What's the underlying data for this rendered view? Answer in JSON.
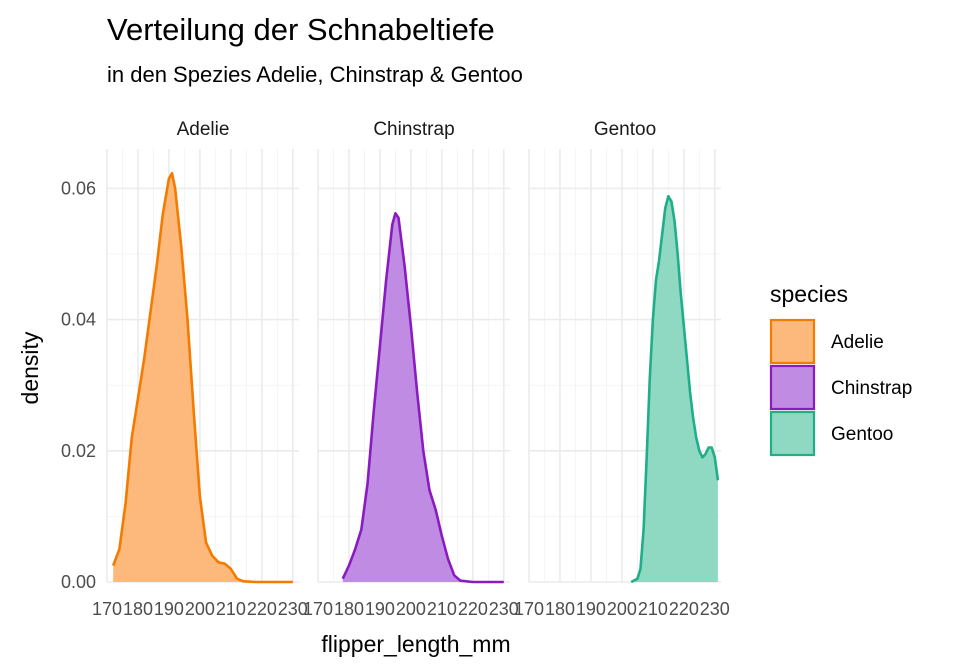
{
  "chart_data": {
    "type": "area",
    "title": "Verteilung der Schnabeltiefe",
    "subtitle": "in den Spezies Adelie, Chinstrap & Gentoo",
    "xlabel": "flipper_length_mm",
    "ylabel": "density",
    "xlim": [
      170,
      232
    ],
    "ylim": [
      0,
      0.066
    ],
    "x_ticks": [
      170,
      180,
      190,
      200,
      210,
      220,
      230
    ],
    "x_tick_labels": [
      "170",
      "180",
      "190",
      "200",
      "210",
      "220",
      "230"
    ],
    "y_ticks": [
      0.0,
      0.02,
      0.04,
      0.06
    ],
    "y_tick_labels": [
      "0.00",
      "0.02",
      "0.04",
      "0.06"
    ],
    "grid": true,
    "legend": {
      "title": "species",
      "placement": "right",
      "entries": [
        "Adelie",
        "Chinstrap",
        "Gentoo"
      ]
    },
    "series": [
      {
        "name": "Adelie",
        "fill": "#FDB97B",
        "line": "#F47A00",
        "points": [
          [
            172,
            0.0025
          ],
          [
            174,
            0.005
          ],
          [
            176,
            0.012
          ],
          [
            178,
            0.022
          ],
          [
            180,
            0.028
          ],
          [
            182,
            0.034
          ],
          [
            184,
            0.041
          ],
          [
            186,
            0.048
          ],
          [
            188,
            0.056
          ],
          [
            190,
            0.0615
          ],
          [
            191,
            0.0623
          ],
          [
            192,
            0.06
          ],
          [
            194,
            0.051
          ],
          [
            196,
            0.04
          ],
          [
            198,
            0.026
          ],
          [
            200,
            0.013
          ],
          [
            202,
            0.006
          ],
          [
            204,
            0.004
          ],
          [
            206,
            0.003
          ],
          [
            208,
            0.0028
          ],
          [
            210,
            0.002
          ],
          [
            212,
            0.0005
          ],
          [
            214,
            0.0001
          ],
          [
            218,
            0.0
          ],
          [
            222,
            0.0
          ],
          [
            226,
            0.0
          ],
          [
            230,
            0.0
          ]
        ]
      },
      {
        "name": "Chinstrap",
        "fill": "#C08BE3",
        "line": "#8A1BC0",
        "points": [
          [
            178,
            0.0005
          ],
          [
            180,
            0.0025
          ],
          [
            182,
            0.005
          ],
          [
            184,
            0.008
          ],
          [
            186,
            0.015
          ],
          [
            188,
            0.026
          ],
          [
            190,
            0.036
          ],
          [
            192,
            0.046
          ],
          [
            194,
            0.0545
          ],
          [
            195,
            0.0562
          ],
          [
            196,
            0.0555
          ],
          [
            198,
            0.048
          ],
          [
            200,
            0.039
          ],
          [
            202,
            0.029
          ],
          [
            204,
            0.02
          ],
          [
            206,
            0.014
          ],
          [
            208,
            0.011
          ],
          [
            210,
            0.007
          ],
          [
            212,
            0.0035
          ],
          [
            214,
            0.001
          ],
          [
            216,
            0.0002
          ],
          [
            220,
            0.0
          ],
          [
            225,
            0.0
          ],
          [
            230,
            0.0
          ]
        ]
      },
      {
        "name": "Gentoo",
        "fill": "#8FD9C3",
        "line": "#1FAE88",
        "points": [
          [
            203,
            0.0
          ],
          [
            205,
            0.0005
          ],
          [
            206,
            0.002
          ],
          [
            207,
            0.008
          ],
          [
            208,
            0.019
          ],
          [
            209,
            0.031
          ],
          [
            210,
            0.04
          ],
          [
            211,
            0.046
          ],
          [
            212,
            0.049
          ],
          [
            213,
            0.053
          ],
          [
            214,
            0.057
          ],
          [
            215,
            0.0588
          ],
          [
            216,
            0.058
          ],
          [
            217,
            0.055
          ],
          [
            218,
            0.05
          ],
          [
            219,
            0.044
          ],
          [
            220,
            0.039
          ],
          [
            221,
            0.034
          ],
          [
            222,
            0.029
          ],
          [
            223,
            0.025
          ],
          [
            224,
            0.022
          ],
          [
            225,
            0.02
          ],
          [
            226,
            0.019
          ],
          [
            227,
            0.0195
          ],
          [
            228,
            0.0205
          ],
          [
            229,
            0.0205
          ],
          [
            230,
            0.019
          ],
          [
            231,
            0.0155
          ]
        ]
      }
    ]
  }
}
